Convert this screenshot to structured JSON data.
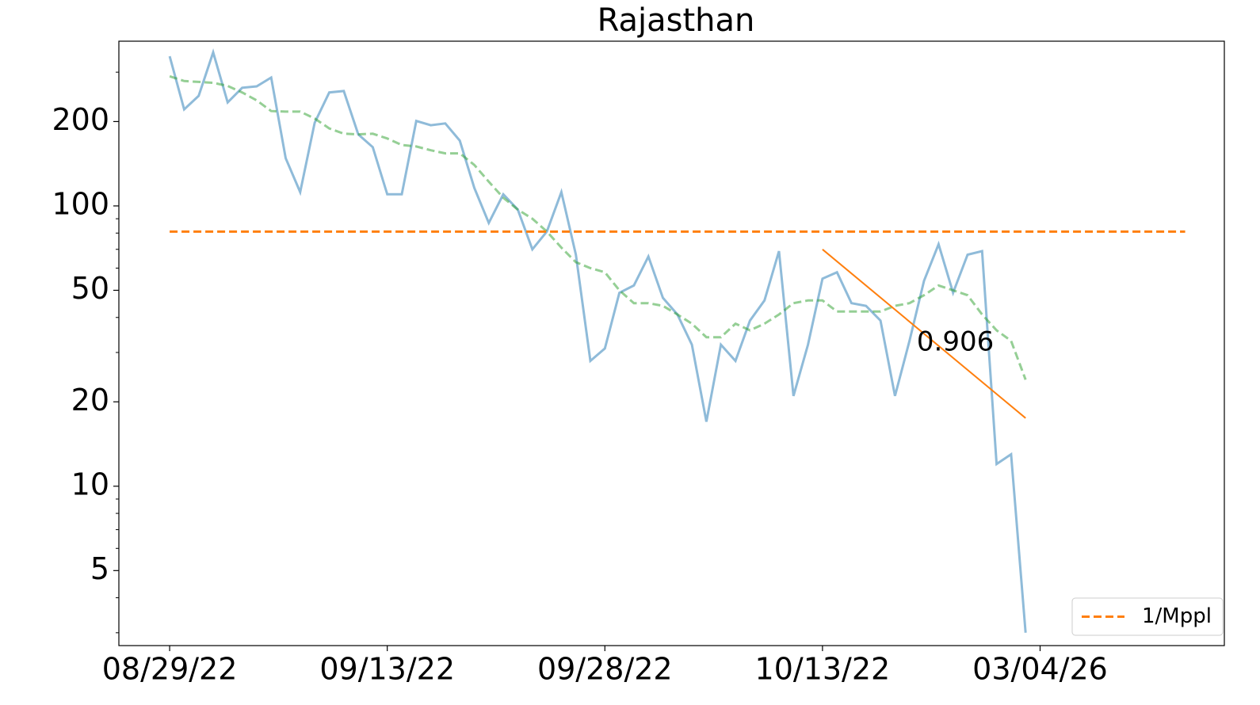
{
  "chart_data": {
    "type": "line",
    "title": "Rajasthan",
    "yscale": "log",
    "x": [
      0,
      1,
      2,
      3,
      4,
      5,
      6,
      7,
      8,
      9,
      10,
      11,
      12,
      13,
      14,
      15,
      16,
      17,
      18,
      19,
      20,
      21,
      22,
      23,
      24,
      25,
      26,
      27,
      28,
      29,
      30,
      31,
      32,
      33,
      34,
      35,
      36,
      37,
      38,
      39,
      40,
      41,
      42,
      43,
      44,
      45,
      46,
      47,
      48,
      49,
      50,
      51,
      52,
      53,
      54,
      55,
      56,
      57,
      58,
      59
    ],
    "series": [
      {
        "color": "#1f77b4",
        "opacity": 0.5,
        "dashed": false,
        "values": [
          342,
          221,
          247,
          353,
          234,
          264,
          267,
          287,
          148,
          112,
          198,
          254,
          257,
          180,
          162,
          110,
          110,
          201,
          194,
          197,
          171,
          116,
          87,
          110,
          97,
          70,
          81,
          112,
          67,
          28,
          31,
          49,
          52,
          66,
          47,
          41,
          32,
          17,
          32,
          28,
          39,
          46,
          69,
          21,
          32,
          55,
          58,
          45,
          44,
          39,
          21,
          33,
          54,
          73,
          49,
          67,
          69,
          12,
          13,
          3
        ]
      },
      {
        "color": "#2ca02c",
        "opacity": 0.5,
        "dashed": true,
        "values": [
          290,
          279,
          277,
          275,
          268,
          254,
          238,
          218,
          217,
          217,
          205,
          189,
          181,
          180,
          181,
          174,
          165,
          163,
          158,
          154,
          154,
          140,
          122,
          107,
          97,
          90,
          81,
          71,
          63,
          60,
          58,
          50,
          45,
          45,
          44,
          41,
          38,
          34,
          34,
          38,
          36,
          38,
          41,
          45,
          46,
          46,
          42,
          42,
          42,
          42,
          44,
          45,
          48,
          52,
          50,
          48,
          41,
          36,
          33,
          24
        ]
      }
    ],
    "hline": {
      "name": "1/Mppl",
      "value": 81,
      "xmin": 0,
      "xmax": 70,
      "color": "#ff7f0e"
    },
    "fit": {
      "x": [
        45,
        59
      ],
      "values": [
        70,
        17.5
      ],
      "color": "#ff7f0e"
    },
    "annotation": {
      "text": "0.906",
      "x": 51.5,
      "y": 32.4,
      "color": "#ff7f0e"
    },
    "xlim": [
      -3.5,
      72.7
    ],
    "xticks": [
      {
        "value": 0,
        "label": "08/29/22"
      },
      {
        "value": 15,
        "label": "09/13/22"
      },
      {
        "value": 30,
        "label": "09/28/22"
      },
      {
        "value": 45,
        "label": "10/13/22"
      },
      {
        "value": 60,
        "label": "03/04/26"
      }
    ],
    "ylim": [
      2.7,
      387
    ],
    "yticks": [
      5,
      10,
      20,
      50,
      100,
      200
    ],
    "yminorticks": [
      3,
      4,
      6,
      7,
      8,
      9,
      30,
      40,
      60,
      70,
      80,
      90,
      300
    ],
    "legend": "lower right"
  }
}
